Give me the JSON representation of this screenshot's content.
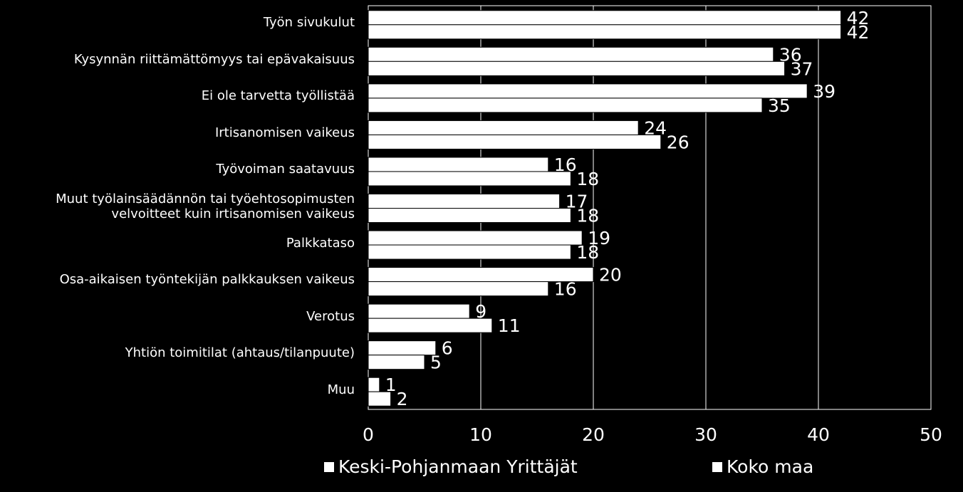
{
  "chart_data": {
    "type": "bar",
    "orientation": "horizontal",
    "categories": [
      "Työn sivukulut",
      "Kysynnän riittämättömyys tai epävakaisuus",
      "Ei ole tarvetta työllistää",
      "Irtisanomisen vaikeus",
      "Työvoiman saatavuus",
      "Muut työlainsäädännön tai työehtosopimusten\nvelvoitteet kuin irtisanomisen vaikeus",
      "Palkkataso",
      "Osa-aikaisen työntekijän palkkauksen vaikeus",
      "Verotus",
      "Yhtiön toimitilat (ahtaus/tilanpuute)",
      "Muu"
    ],
    "series": [
      {
        "name": "Keski-Pohjanmaan Yrittäjät",
        "values": [
          42,
          36,
          39,
          24,
          16,
          17,
          19,
          20,
          9,
          6,
          1
        ]
      },
      {
        "name": "Koko maa",
        "values": [
          42,
          37,
          35,
          26,
          18,
          18,
          18,
          16,
          11,
          5,
          2
        ]
      }
    ],
    "xlim": [
      0,
      50
    ],
    "xticks": [
      "0",
      "10",
      "20",
      "30",
      "40",
      "50"
    ],
    "grid": true,
    "legend_position": "bottom",
    "colors": {
      "background": "#000000",
      "bar": "#ffffff",
      "grid": "#ffffff",
      "text": "#ffffff"
    }
  }
}
